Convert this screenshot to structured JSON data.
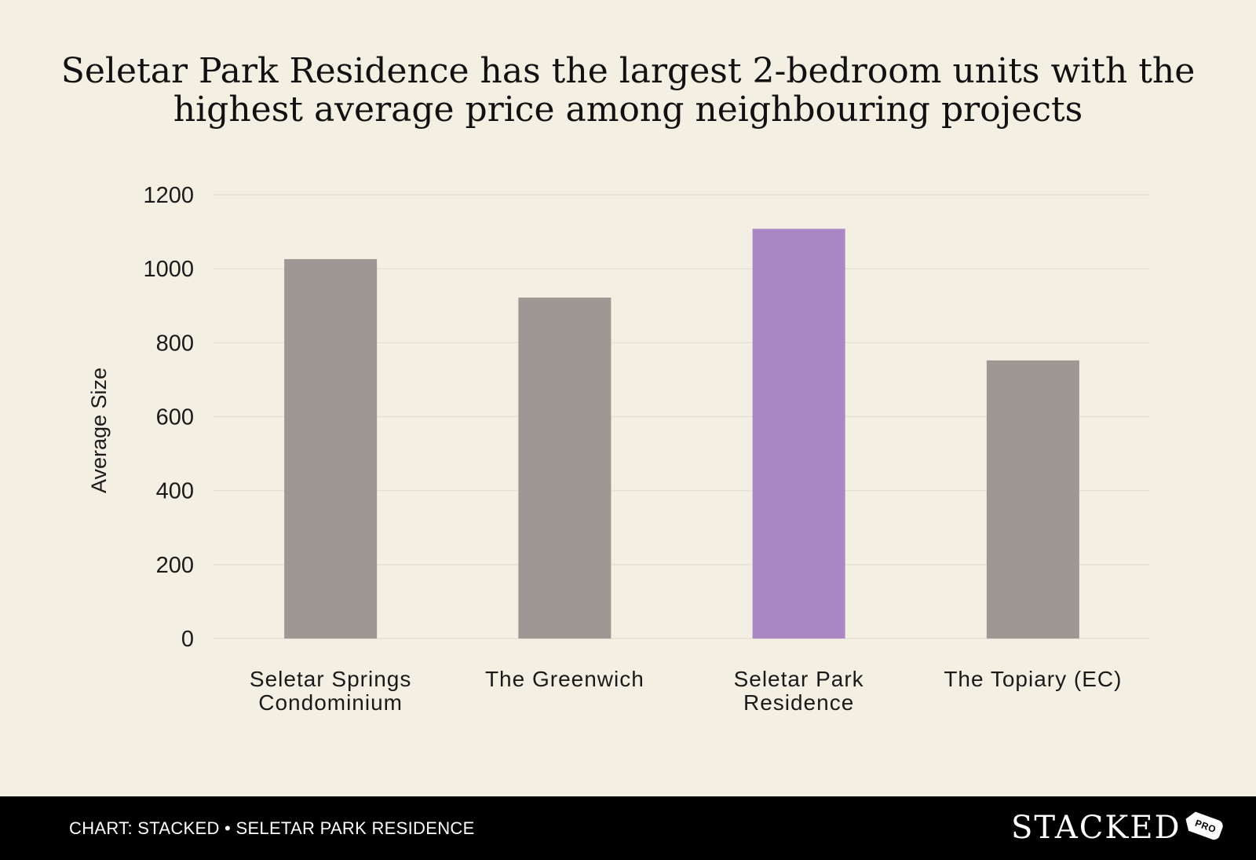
{
  "chart_data": {
    "type": "bar",
    "title_lines": [
      "Seletar Park Residence has the largest 2-bedroom units with the",
      "highest average price among neighbouring projects"
    ],
    "categories": [
      [
        "Seletar Springs",
        "Condominium"
      ],
      [
        "The Greenwich"
      ],
      [
        "Seletar Park",
        "Residence"
      ],
      [
        "The Topiary (EC)"
      ]
    ],
    "values": [
      1026,
      922,
      1108,
      752
    ],
    "highlight_index": 2,
    "ylabel": "Average Size",
    "xlabel": "",
    "ylim": [
      0,
      1200
    ],
    "yticks": [
      0,
      200,
      400,
      600,
      800,
      1000,
      1200
    ],
    "grid": true,
    "colors": {
      "bar": "#9f9794",
      "highlight": "#ab88c5",
      "grid": "#e6e1d4",
      "text": "#1a1a1a"
    }
  },
  "footer": {
    "source": "CHART: STACKED • SELETAR PARK RESIDENCE",
    "logo_word": "STACKED",
    "logo_tag": "PRO"
  }
}
